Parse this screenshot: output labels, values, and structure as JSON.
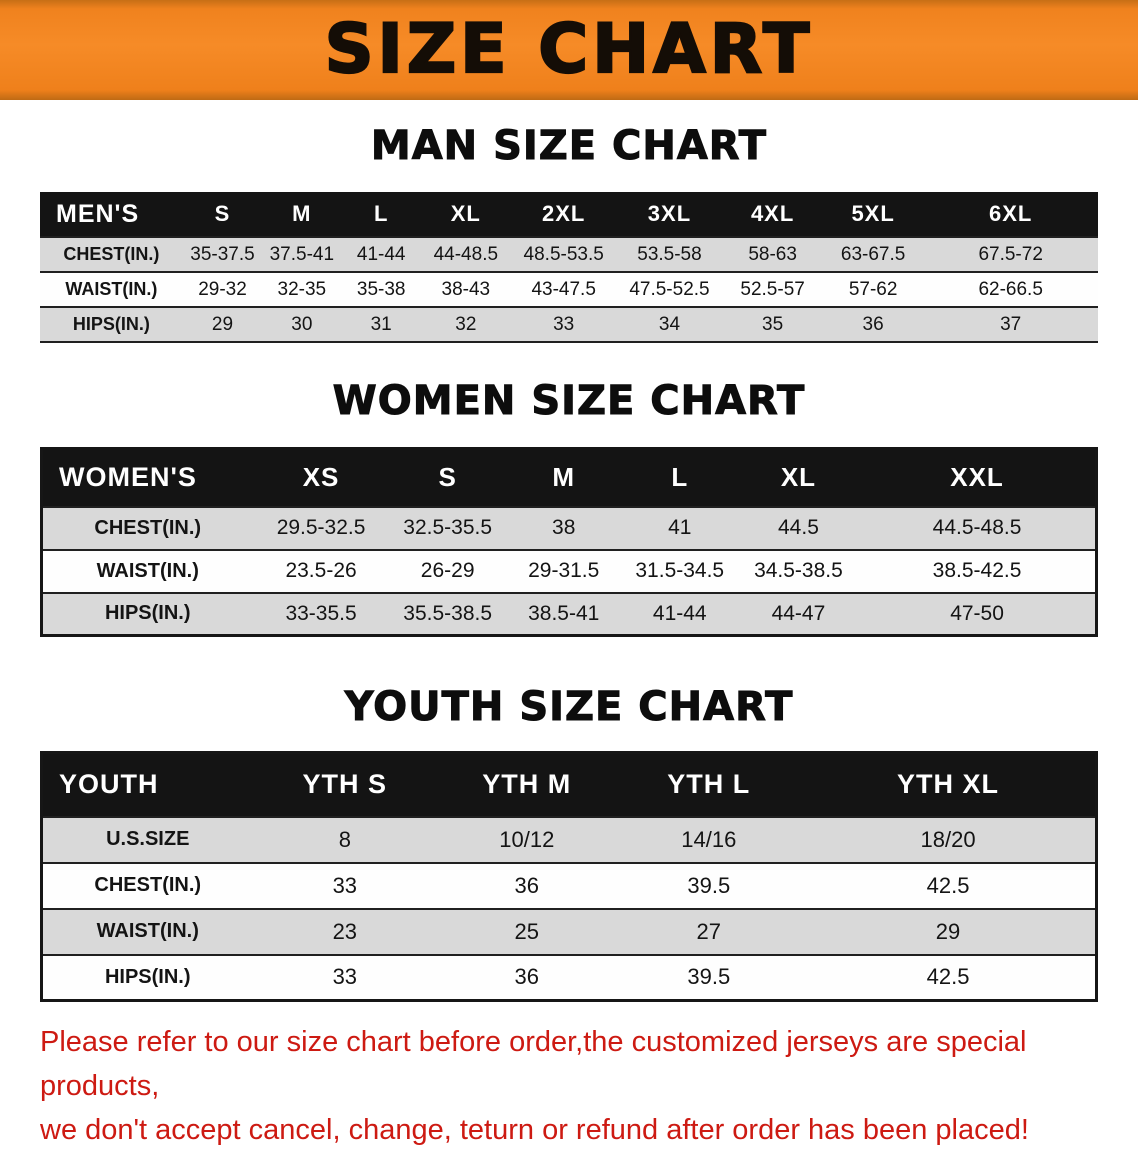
{
  "banner": {
    "title": "SIZE CHART"
  },
  "colors": {
    "banner_bg": "#f0821e",
    "table_header_bg": "#141414",
    "row_alt_bg": "#d9d9d9",
    "notice_text": "#cd1a12"
  },
  "tables": {
    "men": {
      "title": "MAN SIZE CHART",
      "header": [
        "MEN'S",
        "S",
        "M",
        "L",
        "XL",
        "2XL",
        "3XL",
        "4XL",
        "5XL",
        "6XL"
      ],
      "rows": [
        [
          "CHEST(IN.)",
          "35-37.5",
          "37.5-41",
          "41-44",
          "44-48.5",
          "48.5-53.5",
          "53.5-58",
          "58-63",
          "63-67.5",
          "67.5-72"
        ],
        [
          "WAIST(IN.)",
          "29-32",
          "32-35",
          "35-38",
          "38-43",
          "43-47.5",
          "47.5-52.5",
          "52.5-57",
          "57-62",
          "62-66.5"
        ],
        [
          "HIPS(IN.)",
          "29",
          "30",
          "31",
          "32",
          "33",
          "34",
          "35",
          "36",
          "37"
        ]
      ]
    },
    "women": {
      "title": "WOMEN SIZE CHART",
      "header": [
        "WOMEN'S",
        "XS",
        "S",
        "M",
        "L",
        "XL",
        "XXL"
      ],
      "rows": [
        [
          "CHEST(IN.)",
          "29.5-32.5",
          "32.5-35.5",
          "38",
          "41",
          "44.5",
          "44.5-48.5"
        ],
        [
          "WAIST(IN.)",
          "23.5-26",
          "26-29",
          "29-31.5",
          "31.5-34.5",
          "34.5-38.5",
          "38.5-42.5"
        ],
        [
          "HIPS(IN.)",
          "33-35.5",
          "35.5-38.5",
          "38.5-41",
          "41-44",
          "44-47",
          "47-50"
        ]
      ]
    },
    "youth": {
      "title": "YOUTH SIZE CHART",
      "header": [
        "YOUTH",
        "YTH S",
        "YTH M",
        "YTH L",
        "YTH XL"
      ],
      "rows": [
        [
          "U.S.SIZE",
          "8",
          "10/12",
          "14/16",
          "18/20"
        ],
        [
          "CHEST(IN.)",
          "33",
          "36",
          "39.5",
          "42.5"
        ],
        [
          "WAIST(IN.)",
          "23",
          "25",
          "27",
          "29"
        ],
        [
          "HIPS(IN.)",
          "33",
          "36",
          "39.5",
          "42.5"
        ]
      ]
    }
  },
  "notice": {
    "line1": "Please refer to our size chart before order,the customized jerseys are special products,",
    "line2": "we don't accept cancel, change, teturn or refund after order has been placed!"
  }
}
